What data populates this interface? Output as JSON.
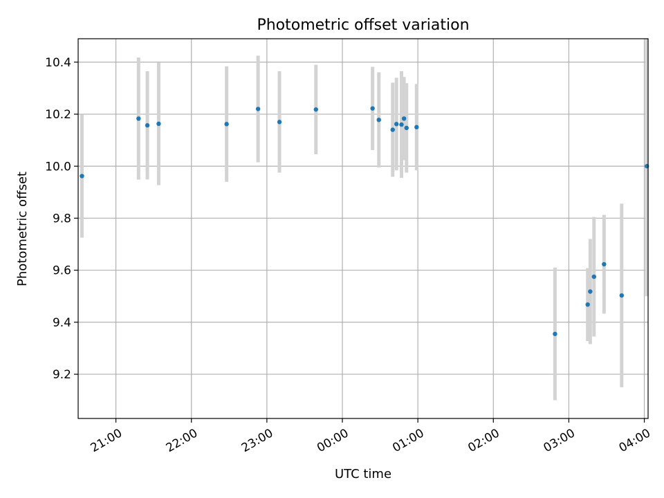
{
  "chart_data": {
    "type": "scatter",
    "title": "Photometric offset variation",
    "xlabel": "UTC time",
    "ylabel": "Photometric offset",
    "x_tick_labels": [
      "21:00",
      "22:00",
      "23:00",
      "00:00",
      "01:00",
      "02:00",
      "03:00",
      "04:00"
    ],
    "y_tick_labels": [
      "9.2",
      "9.4",
      "9.6",
      "9.8",
      "10.0",
      "10.2",
      "10.4"
    ],
    "y_ticks": [
      9.2,
      9.4,
      9.6,
      9.8,
      10.0,
      10.2,
      10.4
    ],
    "x_ticks": [
      "21:00",
      "22:00",
      "23:00",
      "00:00",
      "01:00",
      "02:00",
      "03:00",
      "04:00"
    ],
    "xlim": [
      "20:30",
      "04:03"
    ],
    "ylim": [
      9.03,
      10.49
    ],
    "grid": true,
    "colors": {
      "points": "#1f77b4",
      "errorbars": "#d3d3d3",
      "grid": "#b0b0b0"
    },
    "points": [
      {
        "time": "20:33",
        "y": 9.962,
        "err": 0.237
      },
      {
        "time": "21:18",
        "y": 10.183,
        "err": 0.235
      },
      {
        "time": "21:25",
        "y": 10.157,
        "err": 0.208
      },
      {
        "time": "21:34",
        "y": 10.163,
        "err": 0.236
      },
      {
        "time": "22:28",
        "y": 10.162,
        "err": 0.222
      },
      {
        "time": "22:53",
        "y": 10.22,
        "err": 0.205
      },
      {
        "time": "23:10",
        "y": 10.17,
        "err": 0.195
      },
      {
        "time": "23:39",
        "y": 10.218,
        "err": 0.172
      },
      {
        "time": "00:24",
        "y": 10.222,
        "err": 0.16
      },
      {
        "time": "00:29",
        "y": 10.178,
        "err": 0.183
      },
      {
        "time": "00:40",
        "y": 10.14,
        "err": 0.181
      },
      {
        "time": "00:43",
        "y": 10.162,
        "err": 0.178
      },
      {
        "time": "00:47",
        "y": 10.16,
        "err": 0.205
      },
      {
        "time": "00:49",
        "y": 10.183,
        "err": 0.16
      },
      {
        "time": "00:51",
        "y": 10.147,
        "err": 0.172
      },
      {
        "time": "00:59",
        "y": 10.15,
        "err": 0.166
      },
      {
        "time": "02:49",
        "y": 9.355,
        "err": 0.255
      },
      {
        "time": "03:15",
        "y": 9.468,
        "err": 0.14
      },
      {
        "time": "03:17",
        "y": 9.518,
        "err": 0.202
      },
      {
        "time": "03:20",
        "y": 9.575,
        "err": 0.23
      },
      {
        "time": "03:28",
        "y": 9.623,
        "err": 0.19
      },
      {
        "time": "03:42",
        "y": 9.503,
        "err": 0.353
      },
      {
        "time": "04:02",
        "y": 10.0,
        "err": 0.5
      }
    ]
  }
}
